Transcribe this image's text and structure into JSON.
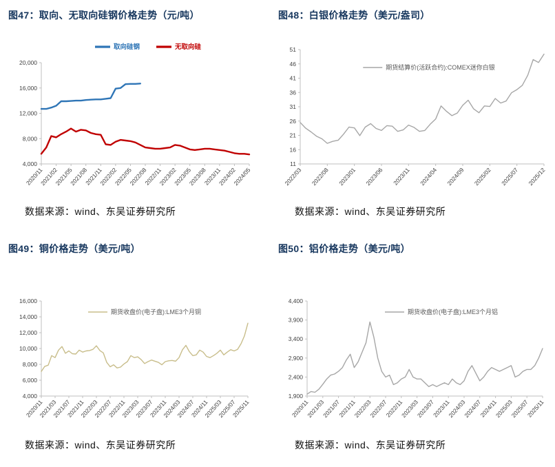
{
  "chart_data": [
    {
      "figure_label": "图47",
      "title": "图47：取向、无取向硅钢价格走势（元/吨）",
      "source": "数据来源：wind、东吴证券研究所",
      "type": "line",
      "grid": false,
      "legend_position": "top-center",
      "ylim": [
        4000,
        20000
      ],
      "y_ticks": [
        4000,
        8000,
        12000,
        16000,
        20000
      ],
      "x_ticks": [
        "2020/11",
        "2021/02",
        "2021/05",
        "2021/08",
        "2021/11",
        "2022/02",
        "2022/05",
        "2022/08",
        "2022/11",
        "2023/02",
        "2023/05",
        "2023/08",
        "2023/11",
        "2024/02",
        "2024/05"
      ],
      "series": [
        {
          "name": "取向硅钢",
          "color": "#2E75B6",
          "values": [
            12700,
            12700,
            12900,
            13200,
            13900,
            13900,
            13950,
            14000,
            14000,
            14100,
            14150,
            14200,
            14200,
            14300,
            14400,
            15900,
            16000,
            16600,
            16650,
            16650,
            16700,
            null,
            null,
            null,
            null,
            null,
            null,
            null,
            null,
            null,
            null,
            null,
            null,
            null,
            null,
            null,
            null,
            null,
            null,
            null,
            null,
            null,
            null
          ]
        },
        {
          "name": "无取向硅",
          "color": "#C00000",
          "values": [
            5600,
            6600,
            8400,
            8200,
            8700,
            9100,
            9600,
            9100,
            9400,
            9300,
            8900,
            8700,
            8600,
            7100,
            7000,
            7500,
            7800,
            7700,
            7600,
            7400,
            7000,
            6600,
            6500,
            6400,
            6400,
            6500,
            6600,
            7000,
            6900,
            6600,
            6300,
            6200,
            6300,
            6400,
            6400,
            6300,
            6200,
            6100,
            5900,
            5700,
            5600,
            5600,
            5500
          ]
        }
      ]
    },
    {
      "figure_label": "图48",
      "title": "图48：白银价格走势（美元/盎司）",
      "source": "数据来源：wind、东吴证券研究所",
      "type": "line",
      "grid": false,
      "legend_position": "inside-top",
      "ylim": [
        11,
        51
      ],
      "y_ticks": [
        11,
        16,
        21,
        26,
        31,
        36,
        41,
        46,
        51
      ],
      "x_ticks": [
        "2022/03",
        "2022/08",
        "2023/01",
        "2023/06",
        "2023/11",
        "2024/04",
        "2024/09",
        "2025/02",
        "2025/07",
        "2025/12"
      ],
      "series": [
        {
          "name": "期货结算价(活跃合约):COMEX迷你白银",
          "color": "#A6A6A6",
          "values": [
            25.5,
            23.5,
            22.2,
            20.7,
            19.8,
            18.2,
            18.9,
            19.3,
            21.4,
            23.9,
            23.6,
            20.9,
            23.9,
            25.1,
            23.4,
            22.7,
            24.4,
            24.2,
            22.4,
            22.9,
            24.6,
            23.8,
            22.4,
            22.7,
            24.9,
            26.7,
            31.3,
            29.4,
            27.9,
            28.8,
            31.5,
            33.3,
            30.3,
            28.9,
            31.3,
            31.1,
            33.9,
            32.3,
            33.0,
            35.9,
            37.0,
            38.5,
            42.0,
            47.5,
            46.5,
            49.4
          ]
        }
      ]
    },
    {
      "figure_label": "图49",
      "title": "图49：铜价格走势（美元/吨）",
      "source": "数据来源：wind、东吴证券研究所",
      "type": "line",
      "grid": false,
      "legend_position": "inside-top",
      "ylim": [
        4000,
        16000
      ],
      "y_ticks": [
        4000,
        6000,
        8000,
        10000,
        12000,
        14000,
        16000
      ],
      "x_ticks": [
        "2020/11",
        "2021/03",
        "2021/07",
        "2021/11",
        "2022/03",
        "2022/07",
        "2022/11",
        "2023/03",
        "2023/07",
        "2023/11",
        "2024/03",
        "2024/07",
        "2024/11",
        "2025/03",
        "2025/07",
        "2025/11"
      ],
      "series": [
        {
          "name": "期货收盘价(电子盘):LME3个月铜",
          "color": "#C8BD8A",
          "values": [
            7100,
            7750,
            7900,
            9100,
            8850,
            9800,
            10250,
            9400,
            9700,
            9350,
            9300,
            9800,
            9550,
            9700,
            9750,
            9900,
            10350,
            9750,
            9450,
            8250,
            7700,
            7950,
            7550,
            7650,
            8050,
            8350,
            9100,
            8850,
            8950,
            8600,
            8100,
            8350,
            8550,
            8400,
            8250,
            7950,
            8350,
            8450,
            8500,
            8400,
            8850,
            9850,
            10400,
            9600,
            9100,
            9200,
            9800,
            9550,
            9000,
            8850,
            9100,
            9400,
            9800,
            9200,
            9550,
            9850,
            9700,
            9900,
            10600,
            11600,
            13200
          ]
        }
      ]
    },
    {
      "figure_label": "图50",
      "title": "图50：铝价格走势（美元/吨）",
      "source": "数据来源：wind、东吴证券研究所",
      "type": "line",
      "grid": false,
      "legend_position": "inside-top",
      "ylim": [
        1900,
        4400
      ],
      "y_ticks": [
        1900,
        2400,
        2900,
        3400,
        3900,
        4400
      ],
      "x_ticks": [
        "2020/11",
        "2021/03",
        "2021/07",
        "2021/11",
        "2022/03",
        "2022/07",
        "2022/11",
        "2023/03",
        "2023/07",
        "2023/11",
        "2024/03",
        "2024/07",
        "2024/11",
        "2025/03",
        "2025/07",
        "2025/11"
      ],
      "series": [
        {
          "name": "期货收盘价(电子盘):LME3个月铝",
          "color": "#A6A6A6",
          "values": [
            1950,
            2020,
            2000,
            2080,
            2210,
            2350,
            2450,
            2480,
            2550,
            2650,
            2850,
            3000,
            2650,
            2800,
            3050,
            3300,
            3850,
            3450,
            2900,
            2550,
            2400,
            2450,
            2200,
            2250,
            2350,
            2400,
            2600,
            2400,
            2350,
            2350,
            2250,
            2150,
            2200,
            2150,
            2200,
            2250,
            2200,
            2350,
            2250,
            2200,
            2300,
            2550,
            2700,
            2500,
            2300,
            2400,
            2550,
            2650,
            2600,
            2550,
            2600,
            2650,
            2700,
            2400,
            2450,
            2550,
            2600,
            2600,
            2700,
            2900,
            3150
          ]
        }
      ]
    }
  ]
}
